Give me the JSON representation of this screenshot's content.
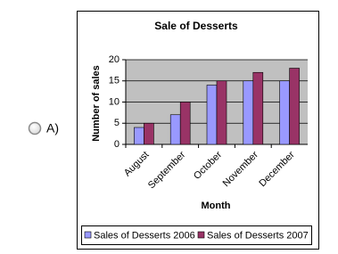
{
  "option": {
    "label": "A)"
  },
  "chart_data": {
    "type": "bar",
    "title": "Sale of Desserts",
    "x_label": "Month",
    "y_label": "Number of sales",
    "categories": [
      "August",
      "September",
      "October",
      "November",
      "December"
    ],
    "series": [
      {
        "name": "Sales of Desserts 2006",
        "color": "#9999ff",
        "values": [
          4,
          7,
          14,
          15,
          15
        ]
      },
      {
        "name": "Sales of Desserts 2007",
        "color": "#993366",
        "values": [
          5,
          10,
          15,
          17,
          18
        ]
      }
    ],
    "ylim": [
      0,
      20
    ],
    "yticks": [
      0,
      5,
      10,
      15,
      20
    ],
    "grid": true,
    "plot_background": "#c0c0c0",
    "legend": "bottom"
  }
}
